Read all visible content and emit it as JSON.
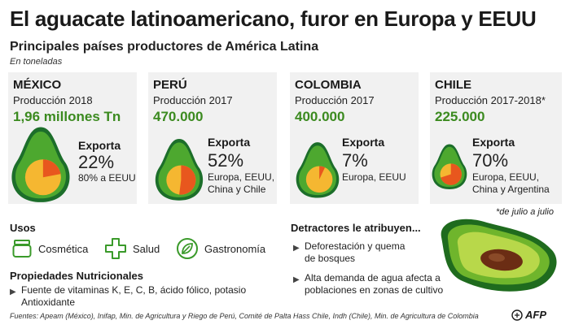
{
  "title": "El aguacate latinoamericano, furor en Europa y EEUU",
  "subtitle": "Principales países productores de América Latina",
  "unit": "En toneladas",
  "colors": {
    "panel_bg": "#f1f1f1",
    "avocado_skin": "#1c6e2a",
    "avocado_flesh": "#4da82f",
    "seed": "#f5b731",
    "export_share": "#e8571e",
    "value_green": "#3b8a1f"
  },
  "chart_data": {
    "type": "pie",
    "title": "El aguacate latinoamericano, furor en Europa y EEUU",
    "subtitle": "Principales países productores de América Latina",
    "unit": "En toneladas",
    "series": [
      {
        "name": "MÉXICO",
        "production_label": "Producción 2018",
        "production": "1,96 millones Tn",
        "export_label": "Exporta",
        "export_pct": 22,
        "export_text": "22%",
        "destinations": "80% a EEUU"
      },
      {
        "name": "PERÚ",
        "production_label": "Producción 2017",
        "production": "470.000",
        "export_label": "Exporta",
        "export_pct": 52,
        "export_text": "52%",
        "destinations": "Europa, EEUU,\nChina y Chile"
      },
      {
        "name": "COLOMBIA",
        "production_label": "Producción 2017",
        "production": "400.000",
        "export_label": "Exporta",
        "export_pct": 7,
        "export_text": "7%",
        "destinations": "Europa, EEUU"
      },
      {
        "name": "CHILE",
        "production_label": "Producción 2017-2018*",
        "production": "225.000",
        "export_label": "Exporta",
        "export_pct": 70,
        "export_text": "70%",
        "destinations": "Europa, EEUU,\nChina y Argentina"
      }
    ],
    "footnote": "*de julio a julio"
  },
  "uses": {
    "title": "Usos",
    "items": [
      {
        "label": "Cosmética",
        "icon": "cosmetic-jar-icon"
      },
      {
        "label": "Salud",
        "icon": "health-cross-icon"
      },
      {
        "label": "Gastronomía",
        "icon": "leaf-icon"
      }
    ]
  },
  "nutrition": {
    "title": "Propiedades Nutricionales",
    "items": [
      "Fuente de vitaminas K, E, C, B, ácido fólico, potasio\nAntioxidante"
    ]
  },
  "detractors": {
    "title": "Detractores le atribuyen...",
    "items": [
      "Deforestación y quema\nde bosques",
      "Alta demanda de agua afecta a\npoblaciones en zonas de cultivo"
    ]
  },
  "sources": "Fuentes: Apeam (México), Inifap, Min. de Agricultura y Riego de Perú, Comité de Palta Hass Chile, Indh (Chile), Min. de Agricultura de Colombia",
  "credit": "AFP"
}
